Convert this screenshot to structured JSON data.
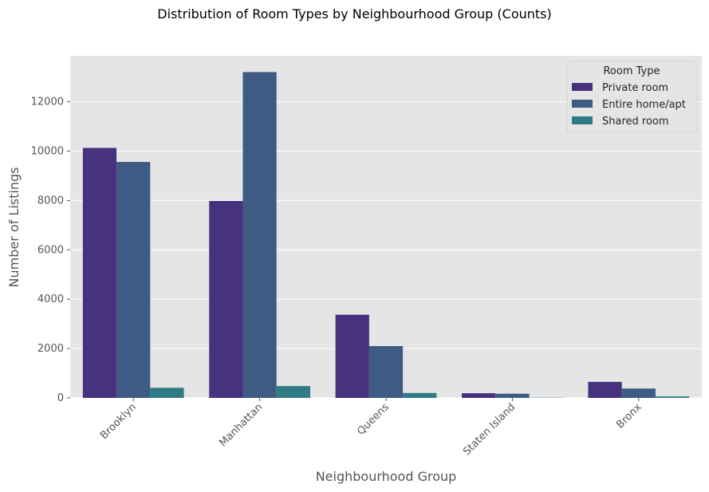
{
  "figure": {
    "title": "Distribution of Room Types by Neighbourhood Group (Counts)"
  },
  "colors": {
    "plot_background": "#E5E5E5",
    "grid": "#FFFFFF",
    "axis_text": "#555555",
    "series": [
      "#46327E",
      "#3E5B84",
      "#2E7B84"
    ]
  },
  "chart_data": {
    "type": "bar",
    "title": "",
    "xlabel": "Neighbourhood Group",
    "ylabel": "Number of Listings",
    "categories": [
      "Brooklyn",
      "Manhattan",
      "Queens",
      "Staten Island",
      "Bronx"
    ],
    "series": [
      {
        "name": "Private room",
        "values": [
          10130,
          7980,
          3370,
          190,
          650
        ]
      },
      {
        "name": "Entire home/apt",
        "values": [
          9560,
          13200,
          2100,
          170,
          380
        ]
      },
      {
        "name": "Shared room",
        "values": [
          410,
          480,
          200,
          10,
          60
        ]
      }
    ],
    "yticks": [
      0,
      2000,
      4000,
      6000,
      8000,
      10000,
      12000
    ],
    "ylim": [
      0,
      13860
    ],
    "grid": true,
    "legend": {
      "title": "Room Type",
      "placement": "top-right"
    }
  }
}
